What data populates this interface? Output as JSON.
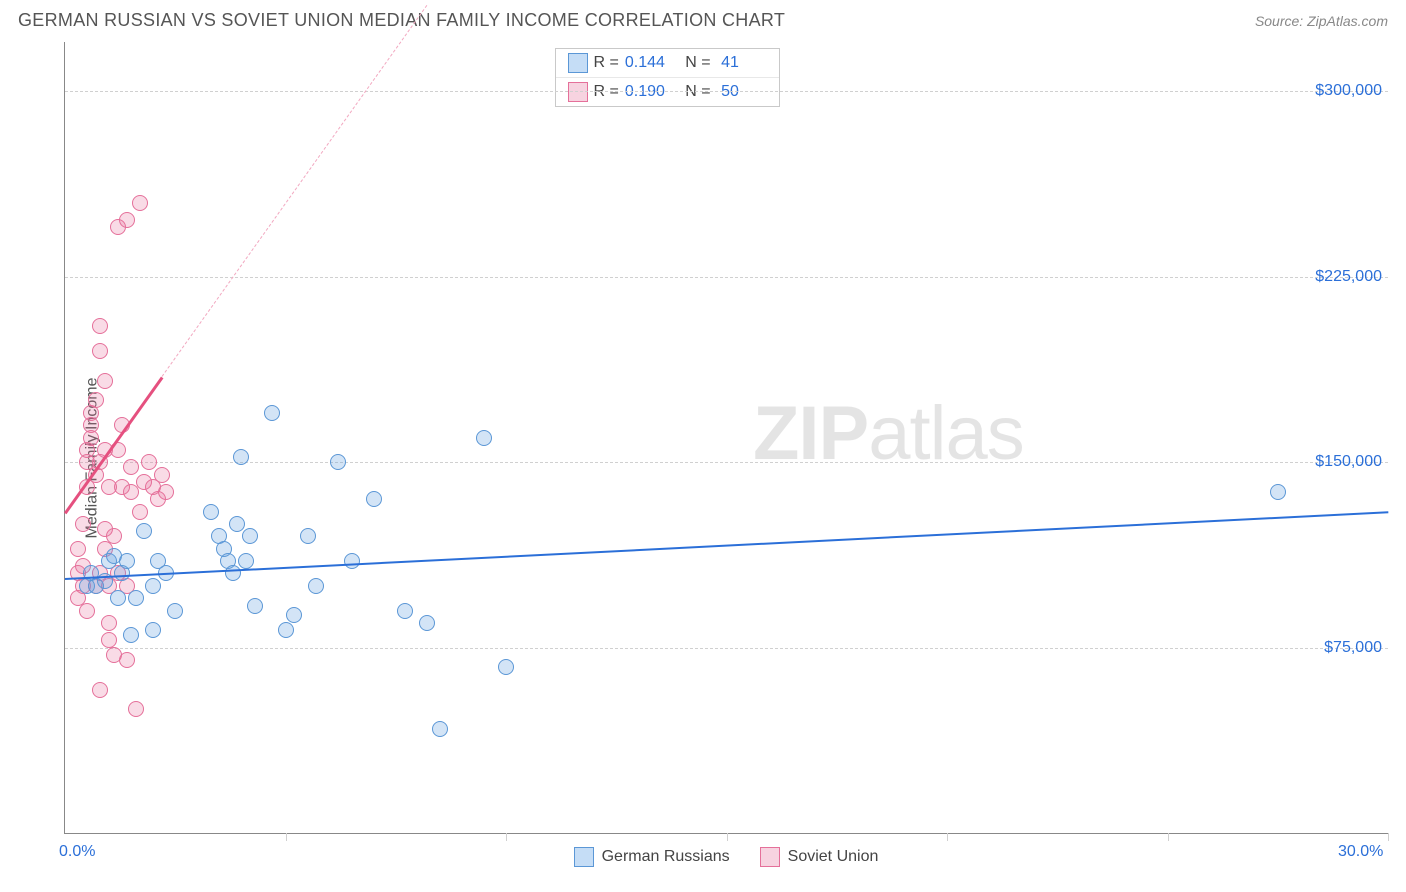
{
  "title": "GERMAN RUSSIAN VS SOVIET UNION MEDIAN FAMILY INCOME CORRELATION CHART",
  "source": "Source: ZipAtlas.com",
  "ylabel": "Median Family Income",
  "watermark_bold": "ZIP",
  "watermark_rest": "atlas",
  "chart": {
    "type": "scatter",
    "xlim": [
      0,
      30
    ],
    "ylim": [
      0,
      320000
    ],
    "x_axis": {
      "ticks": [
        0,
        5,
        10,
        15,
        20,
        25,
        30
      ],
      "labels_shown": [
        {
          "value": 0,
          "text": "0.0%"
        },
        {
          "value": 30,
          "text": "30.0%"
        }
      ]
    },
    "y_axis": {
      "gridlines": [
        75000,
        150000,
        225000,
        300000
      ],
      "labels": [
        {
          "value": 75000,
          "text": "$75,000"
        },
        {
          "value": 150000,
          "text": "$150,000"
        },
        {
          "value": 225000,
          "text": "$225,000"
        },
        {
          "value": 300000,
          "text": "$300,000"
        }
      ]
    },
    "background_color": "#ffffff",
    "grid_color": "#d0d0d0",
    "axis_color": "#888888",
    "label_color": "#2b6fd8",
    "marker_radius": 8,
    "marker_stroke_width": 1.5,
    "series": [
      {
        "name": "German Russians",
        "fill": "rgba(96,158,224,0.28)",
        "stroke": "#5b97d6",
        "swatch_fill": "#c5ddf6",
        "swatch_stroke": "#5b97d6",
        "R": "0.144",
        "N": "41",
        "trend": {
          "x1": 0,
          "y1": 103000,
          "x2": 30,
          "y2": 130000,
          "color": "#2b6fd8",
          "dashed": false,
          "width": 2
        },
        "points": [
          [
            0.5,
            100000
          ],
          [
            0.6,
            105000
          ],
          [
            0.7,
            100000
          ],
          [
            0.9,
            102000
          ],
          [
            1.0,
            110000
          ],
          [
            1.1,
            112000
          ],
          [
            1.2,
            95000
          ],
          [
            1.3,
            105000
          ],
          [
            1.4,
            110000
          ],
          [
            1.5,
            80000
          ],
          [
            1.6,
            95000
          ],
          [
            1.8,
            122000
          ],
          [
            2.0,
            82000
          ],
          [
            2.0,
            100000
          ],
          [
            2.1,
            110000
          ],
          [
            2.3,
            105000
          ],
          [
            2.5,
            90000
          ],
          [
            3.3,
            130000
          ],
          [
            3.5,
            120000
          ],
          [
            3.6,
            115000
          ],
          [
            3.7,
            110000
          ],
          [
            3.8,
            105000
          ],
          [
            3.9,
            125000
          ],
          [
            4.0,
            152000
          ],
          [
            4.1,
            110000
          ],
          [
            4.2,
            120000
          ],
          [
            4.3,
            92000
          ],
          [
            4.7,
            170000
          ],
          [
            5.0,
            82000
          ],
          [
            5.2,
            88000
          ],
          [
            5.5,
            120000
          ],
          [
            5.7,
            100000
          ],
          [
            6.2,
            150000
          ],
          [
            6.5,
            110000
          ],
          [
            7.0,
            135000
          ],
          [
            7.7,
            90000
          ],
          [
            8.2,
            85000
          ],
          [
            8.5,
            42000
          ],
          [
            9.5,
            160000
          ],
          [
            10.0,
            67000
          ],
          [
            27.5,
            138000
          ]
        ]
      },
      {
        "name": "Soviet Union",
        "fill": "rgba(233,112,154,0.25)",
        "stroke": "#e5709a",
        "swatch_fill": "#f7d3e0",
        "swatch_stroke": "#e5709a",
        "R": "0.190",
        "N": "50",
        "trend": {
          "x1": 0,
          "y1": 130000,
          "x2": 2.2,
          "y2": 185000,
          "color": "#e5507f",
          "dashed": false,
          "width": 2.5
        },
        "trend_ext": {
          "x1": 2.2,
          "y1": 185000,
          "x2": 8.2,
          "y2": 335000,
          "color": "#f2a8c0",
          "dashed": true,
          "width": 1.5
        },
        "points": [
          [
            0.3,
            95000
          ],
          [
            0.3,
            105000
          ],
          [
            0.3,
            115000
          ],
          [
            0.4,
            100000
          ],
          [
            0.4,
            108000
          ],
          [
            0.4,
            125000
          ],
          [
            0.5,
            90000
          ],
          [
            0.5,
            140000
          ],
          [
            0.5,
            150000
          ],
          [
            0.5,
            155000
          ],
          [
            0.6,
            160000
          ],
          [
            0.6,
            165000
          ],
          [
            0.6,
            170000
          ],
          [
            0.7,
            100000
          ],
          [
            0.7,
            145000
          ],
          [
            0.7,
            175000
          ],
          [
            0.8,
            105000
          ],
          [
            0.8,
            150000
          ],
          [
            0.8,
            195000
          ],
          [
            0.8,
            205000
          ],
          [
            0.9,
            115000
          ],
          [
            0.9,
            123000
          ],
          [
            0.9,
            155000
          ],
          [
            0.9,
            183000
          ],
          [
            1.0,
            78000
          ],
          [
            1.0,
            100000
          ],
          [
            1.0,
            140000
          ],
          [
            1.1,
            72000
          ],
          [
            1.1,
            120000
          ],
          [
            1.2,
            105000
          ],
          [
            1.2,
            155000
          ],
          [
            1.3,
            140000
          ],
          [
            1.3,
            165000
          ],
          [
            1.4,
            100000
          ],
          [
            1.5,
            138000
          ],
          [
            1.5,
            148000
          ],
          [
            1.6,
            50000
          ],
          [
            1.7,
            130000
          ],
          [
            1.8,
            142000
          ],
          [
            1.9,
            150000
          ],
          [
            2.0,
            140000
          ],
          [
            2.1,
            135000
          ],
          [
            2.2,
            145000
          ],
          [
            2.3,
            138000
          ],
          [
            1.2,
            245000
          ],
          [
            1.4,
            248000
          ],
          [
            1.7,
            255000
          ],
          [
            0.8,
            58000
          ],
          [
            1.0,
            85000
          ],
          [
            1.4,
            70000
          ]
        ]
      }
    ]
  },
  "stats_box_labels": {
    "R": "R =",
    "N": "N ="
  },
  "legend": [
    {
      "label": "German Russians",
      "series_idx": 0
    },
    {
      "label": "Soviet Union",
      "series_idx": 1
    }
  ]
}
